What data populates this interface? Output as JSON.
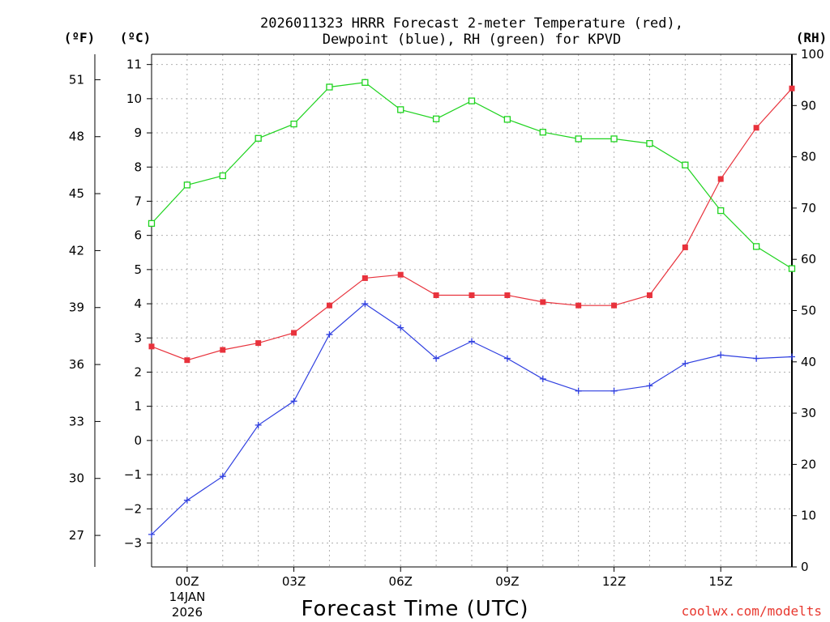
{
  "chart_data": {
    "type": "line",
    "title_line1": "2026011323 HRRR Forecast 2-meter Temperature (red),",
    "title_line2": "Dewpoint (blue), RH (green) for KPVD",
    "xlabel": "Forecast Time (UTC)",
    "credit": "coolwx.com/modelts",
    "date_line1": "14JAN",
    "date_line2": "2026",
    "unit_f": "(ºF)",
    "unit_c": "(ºC)",
    "unit_rh": "(RH)",
    "x": [
      -1,
      0,
      1,
      2,
      3,
      4,
      5,
      6,
      7,
      8,
      9,
      10,
      11,
      12,
      13,
      14,
      15,
      16,
      17
    ],
    "xlim": [
      -1,
      17
    ],
    "x_ticks": [
      0,
      3,
      6,
      9,
      12,
      15
    ],
    "x_tick_labels": [
      "00Z",
      "03Z",
      "06Z",
      "09Z",
      "12Z",
      "15Z"
    ],
    "c_ylim": [
      -3.7,
      11.3
    ],
    "c_ticks": [
      "11",
      "10",
      "9",
      "8",
      "7",
      "6",
      "5",
      "4",
      "3",
      "2",
      "1",
      "0",
      "-1",
      "-2",
      "-3"
    ],
    "f_ticks": [
      "51",
      "48",
      "45",
      "42",
      "39",
      "36",
      "33",
      "30",
      "27"
    ],
    "rh_ylim": [
      0,
      100
    ],
    "rh_ticks": [
      "100",
      "90",
      "80",
      "70",
      "60",
      "50",
      "40",
      "30",
      "20",
      "10",
      "0"
    ],
    "series": [
      {
        "name": "Temperature",
        "color": "#e8323c",
        "marker": "filled-square",
        "axis": "celsius",
        "values": [
          2.75,
          2.35,
          2.65,
          2.85,
          3.15,
          3.95,
          4.75,
          4.85,
          4.25,
          4.25,
          4.25,
          4.05,
          3.95,
          3.95,
          4.25,
          5.65,
          7.65,
          9.15,
          10.3
        ]
      },
      {
        "name": "Dewpoint",
        "color": "#2f3fe0",
        "marker": "plus",
        "axis": "celsius",
        "values": [
          -2.75,
          -1.75,
          -1.05,
          0.45,
          1.15,
          3.1,
          4.0,
          3.3,
          2.4,
          2.9,
          2.4,
          1.8,
          1.45,
          1.45,
          1.6,
          2.25,
          2.5,
          2.4,
          2.45
        ]
      },
      {
        "name": "RH",
        "color": "#1fd31f",
        "marker": "open-square",
        "axis": "rh",
        "values": [
          67,
          74.5,
          76.3,
          83.6,
          86.4,
          93.6,
          94.5,
          89.2,
          87.4,
          90.9,
          87.3,
          84.8,
          83.5,
          83.5,
          82.6,
          78.4,
          69.5,
          62.5,
          58.2
        ]
      }
    ]
  }
}
